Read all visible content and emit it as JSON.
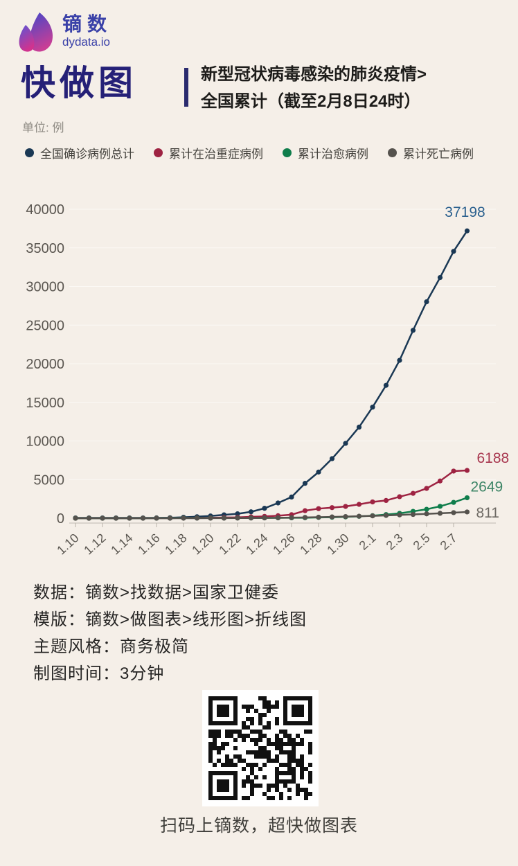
{
  "header": {
    "logo_brand": "镝数",
    "logo_domain": "dydata.io",
    "title": "快做图",
    "subtitle_line1": "新型冠状病毒感染的肺炎疫情>",
    "subtitle_line2": "全国累计（截至2月8日24时）",
    "unit_label": "单位: 例"
  },
  "colors": {
    "background": "#f5efe8",
    "brand_blue": "#3a41a8",
    "title_indigo": "#252077",
    "axis_text": "#5b5751",
    "axis_line": "#c9c3ba",
    "gridline": "#ffffff"
  },
  "chart_data": {
    "type": "line",
    "title": "新型冠状病毒感染的肺炎疫情 全国累计（截至2月8日24时）",
    "unit": "例",
    "ylim": [
      0,
      40000
    ],
    "y_ticks": [
      0,
      5000,
      10000,
      15000,
      20000,
      25000,
      30000,
      35000,
      40000
    ],
    "grid": true,
    "legend_position": "top",
    "categories": [
      "1.10",
      "1.11",
      "1.12",
      "1.13",
      "1.14",
      "1.15",
      "1.16",
      "1.17",
      "1.18",
      "1.19",
      "1.20",
      "1.21",
      "1.22",
      "1.23",
      "1.24",
      "1.25",
      "1.26",
      "1.27",
      "1.28",
      "1.29",
      "1.30",
      "1.31",
      "2.1",
      "2.2",
      "2.3",
      "2.4",
      "2.5",
      "2.6",
      "2.7",
      "2.8"
    ],
    "x_tick_labels": [
      "1.10",
      "1.12",
      "1.14",
      "1.16",
      "1.18",
      "1.20",
      "1.22",
      "1.24",
      "1.26",
      "1.28",
      "1.30",
      "2.1",
      "2.3",
      "2.5",
      "2.7"
    ],
    "series": [
      {
        "name": "全国确诊病例总计",
        "color": "#1a3854",
        "label_color": "#2d628f",
        "end_label": "37198",
        "values": [
          41,
          41,
          41,
          41,
          41,
          41,
          45,
          62,
          121,
          198,
          291,
          440,
          571,
          830,
          1287,
          1975,
          2744,
          4515,
          5974,
          7711,
          9692,
          11791,
          14380,
          17205,
          20438,
          24324,
          28018,
          31161,
          34546,
          37198
        ]
      },
      {
        "name": "累计在治重症病例",
        "color": "#9e2342",
        "label_color": "#a8374f",
        "end_label": "6188",
        "values": [
          1,
          1,
          1,
          1,
          1,
          5,
          10,
          15,
          35,
          44,
          51,
          102,
          117,
          177,
          237,
          324,
          461,
          976,
          1239,
          1370,
          1527,
          1795,
          2110,
          2296,
          2788,
          3219,
          3859,
          4821,
          6101,
          6188
        ]
      },
      {
        "name": "累计治愈病例",
        "color": "#0f7d4b",
        "label_color": "#3d8566",
        "end_label": "2649",
        "values": [
          2,
          2,
          2,
          2,
          2,
          5,
          8,
          12,
          24,
          25,
          25,
          25,
          28,
          34,
          38,
          49,
          51,
          60,
          103,
          124,
          171,
          243,
          328,
          475,
          632,
          892,
          1153,
          1540,
          2050,
          2649
        ]
      },
      {
        "name": "累计死亡病例",
        "color": "#55524d",
        "label_color": "#6e6a64",
        "end_label": "811",
        "values": [
          1,
          1,
          1,
          1,
          1,
          2,
          2,
          2,
          3,
          4,
          6,
          9,
          17,
          25,
          41,
          56,
          80,
          106,
          132,
          170,
          213,
          259,
          304,
          361,
          425,
          490,
          563,
          636,
          722,
          811
        ]
      }
    ]
  },
  "footer": {
    "lines": [
      "数据：镝数>找数据>国家卫健委",
      "模版：镝数>做图表>线形图>折线图",
      "主题风格：商务极简",
      "制图时间：3分钟"
    ]
  },
  "qr": {
    "caption": "扫码上镝数，超快做图表"
  }
}
